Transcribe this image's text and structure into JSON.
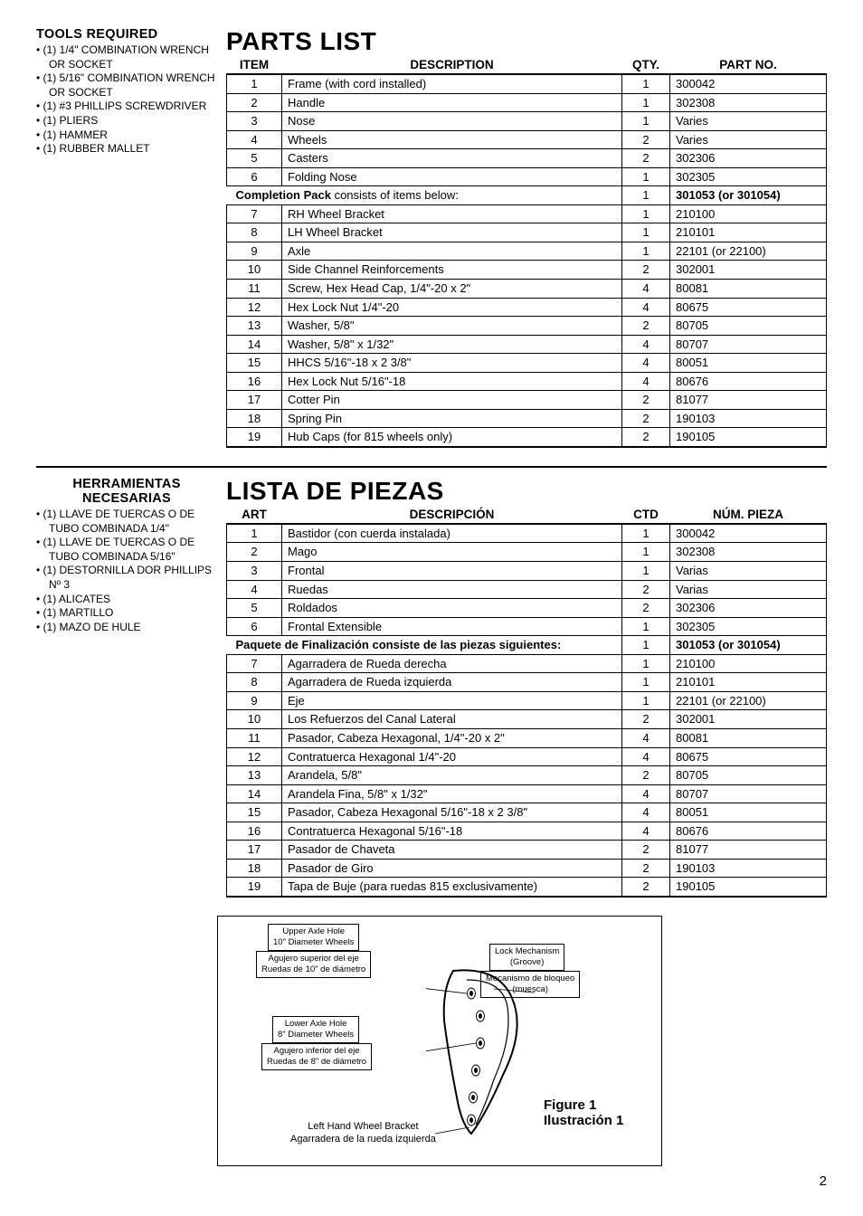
{
  "page_number": "2",
  "sections": [
    {
      "tools_title": "TOOLS REQUIRED",
      "tools_title_class": "",
      "tools": [
        "• (1) 1/4\" COMBINATION WRENCH OR SOCKET",
        "• (1) 5/16\" COMBINATION WRENCH OR SOCKET",
        "• (1) #3 PHILLIPS SCREWDRIVER",
        "• (1) PLIERS",
        "• (1) HAMMER",
        "• (1) RUBBER MALLET"
      ],
      "parts_title": "PARTS LIST",
      "headers": [
        "ITEM",
        "DESCRIPTION",
        "QTY.",
        "PART NO."
      ],
      "rows": [
        {
          "item": "1",
          "desc": "Frame (with cord installed)",
          "qty": "1",
          "part": "300042"
        },
        {
          "item": "2",
          "desc": "Handle",
          "qty": "1",
          "part": "302308"
        },
        {
          "item": "3",
          "desc": "Nose",
          "qty": "1",
          "part": "Varies"
        },
        {
          "item": "4",
          "desc": "Wheels",
          "qty": "2",
          "part": "Varies"
        },
        {
          "item": "5",
          "desc": "Casters",
          "qty": "2",
          "part": "302306"
        },
        {
          "item": "6",
          "desc": "Folding Nose",
          "qty": "1",
          "part": "302305"
        },
        {
          "span": true,
          "bold": "Completion Pack",
          "rest": " consists of items below:",
          "qty": "1",
          "part": "301053 (or 301054)"
        },
        {
          "item": "7",
          "desc": "RH Wheel Bracket",
          "qty": "1",
          "part": "210100"
        },
        {
          "item": "8",
          "desc": "LH Wheel Bracket",
          "qty": "1",
          "part": "210101"
        },
        {
          "item": "9",
          "desc": "Axle",
          "qty": "1",
          "part": "22101 (or 22100)"
        },
        {
          "item": "10",
          "desc": "Side Channel Reinforcements",
          "qty": "2",
          "part": "302001"
        },
        {
          "item": "11",
          "desc": "Screw, Hex Head Cap, 1/4\"-20 x 2\"",
          "qty": "4",
          "part": "80081"
        },
        {
          "item": "12",
          "desc": "Hex Lock Nut 1/4\"-20",
          "qty": "4",
          "part": "80675"
        },
        {
          "item": "13",
          "desc": "Washer, 5/8\"",
          "qty": "2",
          "part": "80705"
        },
        {
          "item": "14",
          "desc": "Washer, 5/8\" x 1/32\"",
          "qty": "4",
          "part": "80707"
        },
        {
          "item": "15",
          "desc": "HHCS 5/16\"-18 x 2 3/8\"",
          "qty": "4",
          "part": "80051"
        },
        {
          "item": "16",
          "desc": "Hex Lock Nut 5/16\"-18",
          "qty": "4",
          "part": "80676"
        },
        {
          "item": "17",
          "desc": "Cotter Pin",
          "qty": "2",
          "part": "81077"
        },
        {
          "item": "18",
          "desc": "Spring Pin",
          "qty": "2",
          "part": "190103"
        },
        {
          "item": "19",
          "desc": "Hub Caps (for 815 wheels only)",
          "qty": "2",
          "part": "190105"
        }
      ]
    },
    {
      "tools_title": "HERRAMIENTAS NECESARIAS",
      "tools_title_class": "es",
      "tools": [
        "• (1) LLAVE DE TUERCAS O DE TUBO COMBINADA 1/4\"",
        "• (1) LLAVE DE TUERCAS O DE TUBO COMBINADA 5/16\"",
        "• (1) DESTORNILLA DOR PHILLIPS Nº 3",
        "• (1) ALICATES",
        "• (1) MARTILLO",
        "• (1) MAZO DE HULE"
      ],
      "parts_title": "LISTA DE PIEZAS",
      "headers": [
        "ART",
        "DESCRIPCIÓN",
        "CTD",
        "NÚM. PIEZA"
      ],
      "rows": [
        {
          "item": "1",
          "desc": "Bastidor (con cuerda instalada)",
          "qty": "1",
          "part": "300042"
        },
        {
          "item": "2",
          "desc": "Mago",
          "qty": "1",
          "part": "302308"
        },
        {
          "item": "3",
          "desc": "Frontal",
          "qty": "1",
          "part": "Varias"
        },
        {
          "item": "4",
          "desc": "Ruedas",
          "qty": "2",
          "part": "Varias"
        },
        {
          "item": "5",
          "desc": "Roldados",
          "qty": "2",
          "part": "302306"
        },
        {
          "item": "6",
          "desc": "Frontal Extensible",
          "qty": "1",
          "part": "302305"
        },
        {
          "span": true,
          "bold": "Paquete de Finalización consiste de las piezas siguientes:",
          "rest": "",
          "qty": "1",
          "part": "301053 (or 301054)"
        },
        {
          "item": "7",
          "desc": "Agarradera de Rueda derecha",
          "qty": "1",
          "part": "210100"
        },
        {
          "item": "8",
          "desc": "Agarradera de Rueda izquierda",
          "qty": "1",
          "part": "210101"
        },
        {
          "item": "9",
          "desc": "Eje",
          "qty": "1",
          "part": "22101 (or 22100)"
        },
        {
          "item": "10",
          "desc": "Los Refuerzos del Canal Lateral",
          "qty": "2",
          "part": "302001"
        },
        {
          "item": "11",
          "desc": "Pasador, Cabeza Hexagonal, 1/4\"-20 x 2\"",
          "qty": "4",
          "part": "80081"
        },
        {
          "item": "12",
          "desc": "Contratuerca Hexagonal 1/4\"-20",
          "qty": "4",
          "part": "80675"
        },
        {
          "item": "13",
          "desc": "Arandela, 5/8\"",
          "qty": "2",
          "part": "80705"
        },
        {
          "item": "14",
          "desc": "Arandela Fina, 5/8\" x 1/32\"",
          "qty": "4",
          "part": "80707"
        },
        {
          "item": "15",
          "desc": "Pasador, Cabeza Hexagonal 5/16\"-18 x 2 3/8\"",
          "qty": "4",
          "part": "80051"
        },
        {
          "item": "16",
          "desc": "Contratuerca Hexagonal 5/16\"-18",
          "qty": "4",
          "part": "80676"
        },
        {
          "item": "17",
          "desc": "Pasador de Chaveta",
          "qty": "2",
          "part": "81077"
        },
        {
          "item": "18",
          "desc": "Pasador de Giro",
          "qty": "2",
          "part": "190103"
        },
        {
          "item": "19",
          "desc": "Tapa de Buje (para ruedas 815 exclusivamente)",
          "qty": "2",
          "part": "190105"
        }
      ]
    }
  ],
  "figure": {
    "upper_en": "Upper Axle Hole\n10\" Diameter Wheels",
    "upper_es": "Agujero superior del eje\nRuedas de 10\" de diámetro",
    "lock_en": "Lock Mechanism\n(Groove)",
    "lock_es": "Mecanismo de bloqueo\n(muesca)",
    "lower_en": "Lower Axle Hole\n8\" Diameter Wheels",
    "lower_es": "Agujero inferior del eje\nRuedas de 8\" de diámetro",
    "left_en": "Left Hand Wheel Bracket",
    "left_es": "Agarradera de la rueda izquierda",
    "fig_en": "Figure 1",
    "fig_es": "Ilustración 1"
  }
}
